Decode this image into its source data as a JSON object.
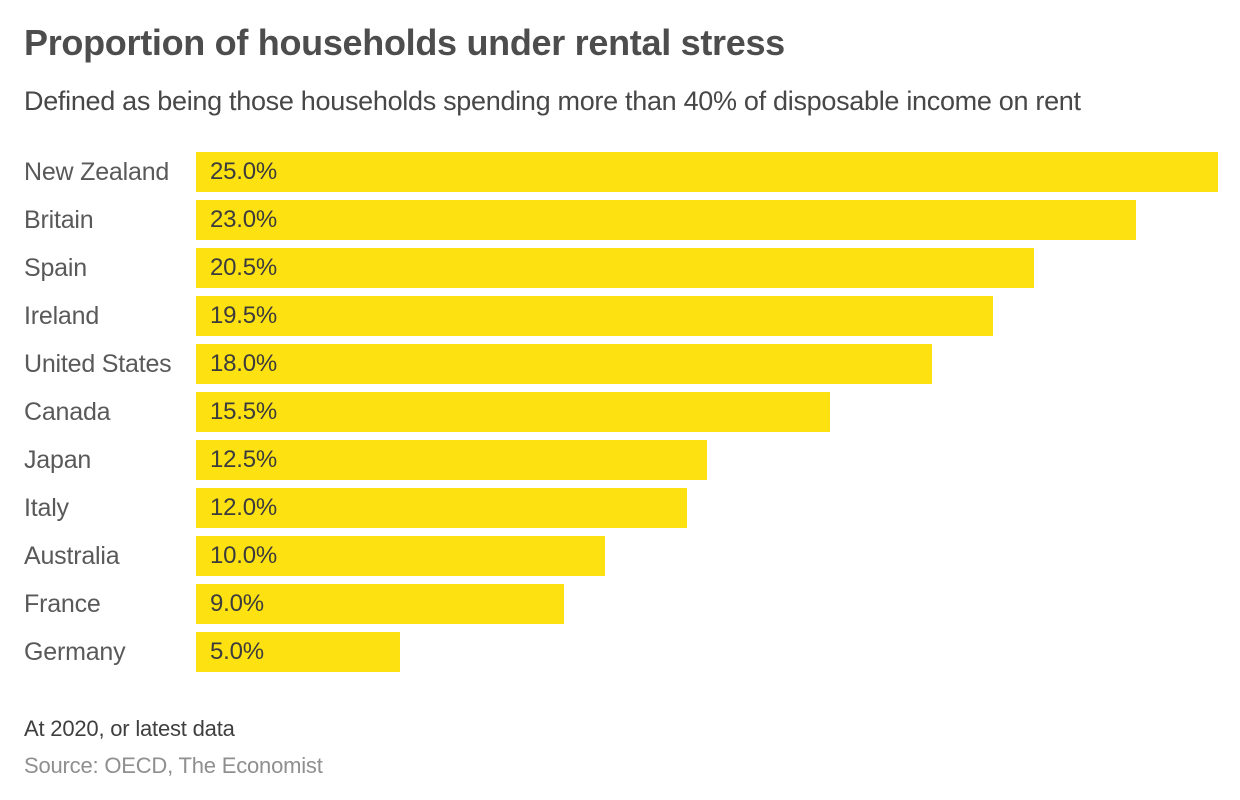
{
  "header": {
    "title": "Proportion of households under rental stress",
    "subtitle": "Defined as being those households spending more than 40% of disposable income on rent"
  },
  "chart_data": {
    "type": "bar",
    "orientation": "horizontal",
    "title": "Proportion of households under rental stress",
    "subtitle": "Defined as being those households spending more than 40% of disposable income on rent",
    "categories": [
      "New Zealand",
      "Britain",
      "Spain",
      "Ireland",
      "United States",
      "Canada",
      "Japan",
      "Italy",
      "Australia",
      "France",
      "Germany"
    ],
    "values": [
      25.0,
      23.0,
      20.5,
      19.5,
      18.0,
      15.5,
      12.5,
      12.0,
      10.0,
      9.0,
      5.0
    ],
    "value_labels": [
      "25.0%",
      "23.0%",
      "20.5%",
      "19.5%",
      "18.0%",
      "15.5%",
      "12.5%",
      "12.0%",
      "10.0%",
      "9.0%",
      "5.0%"
    ],
    "xlabel": "",
    "ylabel": "",
    "xlim": [
      0,
      25
    ],
    "grid": false,
    "legend": false,
    "bar_color": "#FDE111",
    "value_label_position": "inside-start"
  },
  "footer": {
    "note": "At 2020, or latest data",
    "source": "Source: OECD, The Economist"
  },
  "colors": {
    "background": "#FFFFFF",
    "bar": "#FDE111",
    "title_text": "#4D4D4D",
    "subtitle_text": "#474747",
    "label_text": "#595959",
    "value_text": "#3C3C3C",
    "note_text": "#3F3F3F",
    "source_text": "#8F8F8F"
  }
}
